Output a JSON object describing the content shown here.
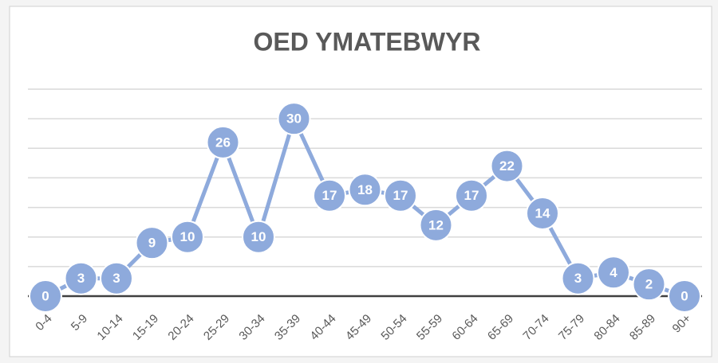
{
  "chart_data": {
    "type": "line",
    "title": "OED YMATEBWYR",
    "categories": [
      "0-4",
      "5-9",
      "10-14",
      "15-19",
      "20-24",
      "25-29",
      "30-34",
      "35-39",
      "40-44",
      "45-49",
      "50-54",
      "55-59",
      "60-64",
      "65-69",
      "70-74",
      "75-79",
      "80-84",
      "85-89",
      "90+"
    ],
    "values": [
      0,
      3,
      3,
      9,
      10,
      26,
      10,
      30,
      17,
      18,
      17,
      12,
      17,
      22,
      14,
      3,
      4,
      2,
      0
    ],
    "color": "#8eaadc",
    "ylim": [
      0,
      35
    ],
    "yticks": [
      0,
      5,
      10,
      15,
      20,
      25,
      30,
      35
    ],
    "grid": true
  }
}
